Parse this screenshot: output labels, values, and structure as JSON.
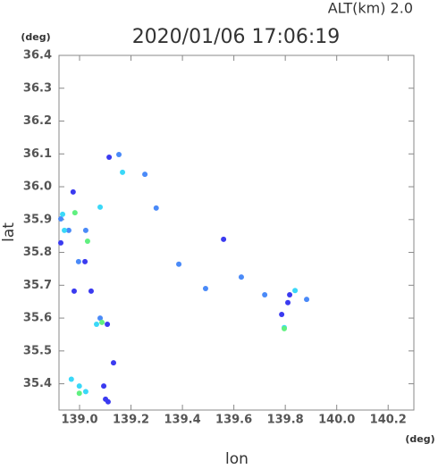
{
  "chart_data": {
    "type": "scatter",
    "title": "2020/01/06 17:06:19",
    "subtitle": "ALT(km) 2.0",
    "x_label": "lon",
    "y_label": "lat",
    "x_unit": "(deg)",
    "y_unit": "(deg)",
    "xlim": [
      138.92,
      140.3
    ],
    "ylim": [
      35.32,
      36.4
    ],
    "xticks": [
      {
        "value": 139.0,
        "label": "139.0"
      },
      139.2,
      139.4,
      139.6,
      139.8,
      {
        "value": 140.0,
        "label": "140.0"
      },
      140.2
    ],
    "yticks": [
      36.4,
      36.3,
      36.2,
      36.1,
      {
        "value": 36.0,
        "label": "36.0"
      },
      35.9,
      35.8,
      35.7,
      35.6,
      35.5,
      35.4
    ],
    "series": [
      {
        "color": "#3a3af0",
        "x": [
          139.094,
          139.132,
          139.101,
          139.111,
          138.979,
          139.045,
          139.021,
          138.927,
          138.975,
          139.115,
          139.108,
          139.81,
          139.786,
          139.56,
          139.817
        ],
        "values": [
          35.393,
          35.464,
          35.353,
          35.345,
          35.682,
          35.682,
          35.772,
          35.829,
          35.984,
          36.09,
          35.581,
          35.647,
          35.611,
          35.84,
          35.671
        ]
      },
      {
        "color": "#4a8af8",
        "x": [
          138.927,
          138.996,
          139.024,
          139.08,
          138.958,
          139.153,
          139.254,
          139.386,
          139.72,
          139.883,
          139.629,
          139.298,
          139.49
        ],
        "values": [
          35.902,
          35.772,
          35.867,
          35.6,
          35.867,
          36.098,
          36.038,
          35.764,
          35.671,
          35.657,
          35.725,
          35.935,
          35.69
        ]
      },
      {
        "color": "#3ad8f8",
        "x": [
          138.968,
          139.024,
          138.941,
          138.934,
          138.999,
          139.796,
          139.838,
          139.066,
          139.08,
          139.167
        ],
        "values": [
          35.414,
          35.376,
          35.867,
          35.916,
          35.393,
          35.571,
          35.684,
          35.581,
          35.938,
          36.044
        ]
      },
      {
        "color": "#60f080",
        "x": [
          138.982,
          139.031,
          139.796,
          138.999,
          139.087
        ],
        "values": [
          35.921,
          35.834,
          35.568,
          35.371,
          35.587
        ]
      }
    ]
  }
}
